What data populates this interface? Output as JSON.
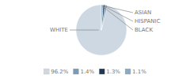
{
  "chart_data": {
    "type": "pie",
    "categories": [
      "WHITE",
      "ASIAN",
      "HISPANIC",
      "BLACK"
    ],
    "values": [
      96.2,
      1.4,
      1.3,
      1.1
    ],
    "value_labels": [
      "96.2%",
      "1.4%",
      "1.3%",
      "1.1%"
    ],
    "colors": [
      "#cdd8e3",
      "#7a9bb5",
      "#1e3a5a",
      "#8aaabf"
    ],
    "legend": "bottom"
  }
}
